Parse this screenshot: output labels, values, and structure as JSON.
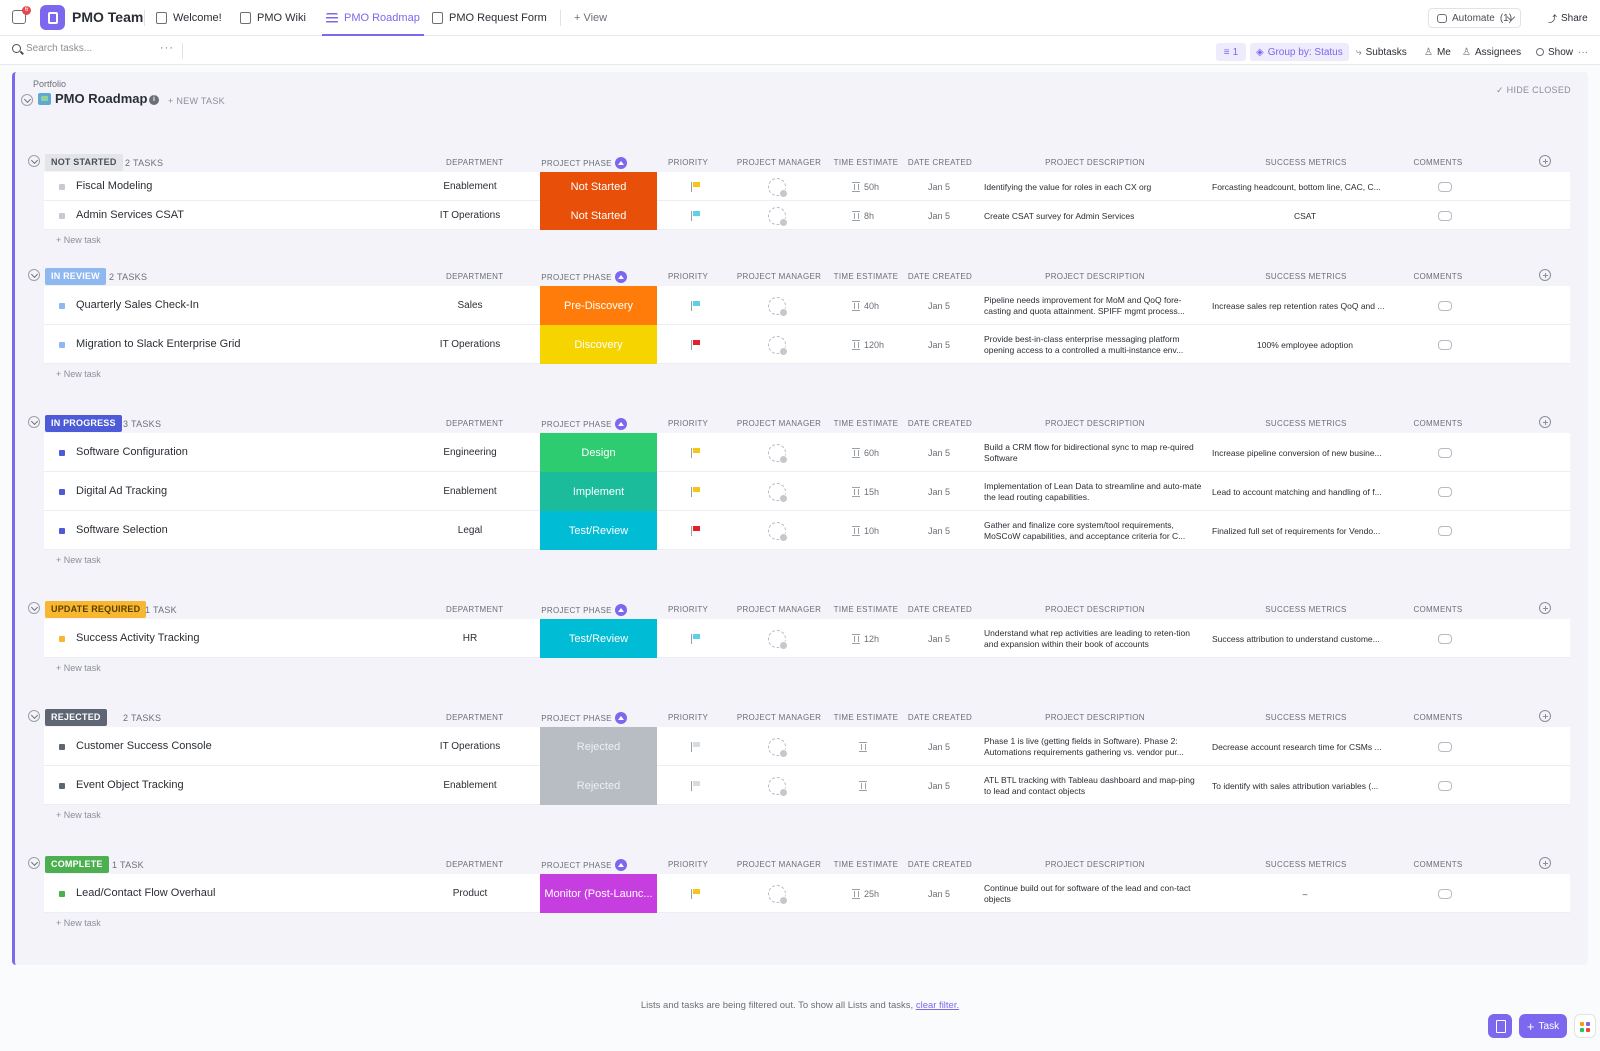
{
  "topbar": {
    "notification_count": "6",
    "space_name": "PMO Team",
    "tabs": [
      {
        "label": "Welcome!",
        "icon": "doc-icon",
        "active": false
      },
      {
        "label": "PMO Wiki",
        "icon": "doc-icon",
        "active": false
      },
      {
        "label": "PMO Roadmap",
        "icon": "list-icon",
        "active": true
      },
      {
        "label": "PMO Request Form",
        "icon": "form-icon",
        "active": false
      }
    ],
    "add_view_label": "+ View",
    "automate_label": "Automate",
    "automate_count": "(1)",
    "share_label": "Share"
  },
  "toolbar": {
    "search_placeholder": "Search tasks...",
    "more": "···",
    "filter_count": "1",
    "group_by": "Group by: Status",
    "subtasks": "Subtasks",
    "me": "Me",
    "assignees": "Assignees",
    "show": "Show",
    "more_right": "···"
  },
  "list": {
    "breadcrumb": "Portfolio",
    "title": "PMO Roadmap",
    "new_task": "+ NEW TASK",
    "hide_closed": "✓ HIDE CLOSED"
  },
  "columns": {
    "department": "DEPARTMENT",
    "phase": "PROJECT PHASE",
    "priority": "PRIORITY",
    "manager": "PROJECT MANAGER",
    "time": "TIME ESTIMATE",
    "date": "DATE CREATED",
    "desc": "PROJECT DESCRIPTION",
    "metrics": "SUCCESS METRICS",
    "comments": "COMMENTS"
  },
  "new_task_row_label": "+ New task",
  "colors": {
    "accent": "#7b68ee"
  },
  "groups": [
    {
      "status": "NOT STARTED",
      "count": "2 TASKS",
      "pill_bg": "#e3e5e9",
      "pill_fg": "#4b4f56",
      "dot": "#c7cbd1",
      "tasks": [
        {
          "name": "Fiscal Modeling",
          "dept": "Enablement",
          "phase": "Not Started",
          "phase_color": "#e8500a",
          "flag": "#f5c518",
          "time": "50h",
          "date": "Jan 5",
          "desc": "Identifying the value for roles in each CX org",
          "metric": "Forcasting headcount, bottom line, CAC, C...",
          "metric_center": false
        },
        {
          "name": "Admin Services CSAT",
          "dept": "IT Operations",
          "phase": "Not Started",
          "phase_color": "#e8500a",
          "flag": "#5fd0e6",
          "time": "8h",
          "date": "Jan 5",
          "desc": "Create CSAT survey for Admin Services",
          "metric": "CSAT",
          "metric_center": true
        }
      ]
    },
    {
      "status": "IN REVIEW",
      "count": "2 TASKS",
      "pill_bg": "#8fb7f0",
      "pill_fg": "#ffffff",
      "dot": "#8fb7f0",
      "tasks": [
        {
          "name": "Quarterly Sales Check-In",
          "dept": "Sales",
          "phase": "Pre-Discovery",
          "phase_color": "#ff7c0a",
          "flag": "#5fd0e6",
          "time": "40h",
          "date": "Jan 5",
          "desc": "Pipeline needs improvement for MoM and QoQ fore-casting and quota attainment.  SPIFF mgmt process...",
          "metric": "Increase sales rep retention rates QoQ and ...",
          "metric_center": false
        },
        {
          "name": "Migration to Slack Enterprise Grid",
          "dept": "IT Operations",
          "phase": "Discovery",
          "phase_color": "#f5d400",
          "flag": "#e5202a",
          "time": "120h",
          "date": "Jan 5",
          "desc": "Provide best-in-class enterprise messaging platform opening access to a controlled a multi-instance env...",
          "metric": "100% employee adoption",
          "metric_center": true
        }
      ]
    },
    {
      "status": "IN PROGRESS",
      "count": "3 TASKS",
      "pill_bg": "#4d5bd6",
      "pill_fg": "#ffffff",
      "dot": "#4d5bd6",
      "tasks": [
        {
          "name": "Software Configuration",
          "dept": "Engineering",
          "phase": "Design",
          "phase_color": "#2ecc71",
          "flag": "#f5c518",
          "time": "60h",
          "date": "Jan 5",
          "desc": "Build a CRM flow for bidirectional sync to map re-quired Software",
          "metric": "Increase pipeline conversion of new busine...",
          "metric_center": false
        },
        {
          "name": "Digital Ad Tracking",
          "dept": "Enablement",
          "phase": "Implement",
          "phase_color": "#1abc9c",
          "flag": "#f5c518",
          "time": "15h",
          "date": "Jan 5",
          "desc": "Implementation of Lean Data to streamline and auto-mate the lead routing capabilities.",
          "metric": "Lead to account matching and handling of f...",
          "metric_center": false
        },
        {
          "name": "Software Selection",
          "dept": "Legal",
          "phase": "Test/Review",
          "phase_color": "#00bcd4",
          "flag": "#e5202a",
          "time": "10h",
          "date": "Jan 5",
          "desc": "Gather and finalize core system/tool requirements, MoSCoW capabilities, and acceptance criteria for C...",
          "metric": "Finalized full set of requirements for Vendo...",
          "metric_center": false
        }
      ]
    },
    {
      "status": "UPDATE REQUIRED",
      "count": "1 TASK",
      "pill_bg": "#f7b731",
      "pill_fg": "#5a3e00",
      "dot": "#f7b731",
      "tasks": [
        {
          "name": "Success Activity Tracking",
          "dept": "HR",
          "phase": "Test/Review",
          "phase_color": "#00bcd4",
          "flag": "#5fd0e6",
          "time": "12h",
          "date": "Jan 5",
          "desc": " Understand what rep activities are leading to reten-tion and expansion within their book of accounts",
          "metric": "Success attribution to understand custome...",
          "metric_center": false
        }
      ]
    },
    {
      "status": "REJECTED",
      "count": "2 TASKS",
      "pill_bg": "#5f6673",
      "pill_fg": "#ffffff",
      "dot": "#5f6673",
      "tasks": [
        {
          "name": "Customer Success Console",
          "dept": "IT Operations",
          "phase": "Rejected",
          "phase_color": "#b8bcc3",
          "flag": "#d8dbe0",
          "time": "",
          "date": "Jan 5",
          "desc": "Phase 1 is live (getting fields in Software).  Phase 2: Automations requirements gathering vs. vendor pur...",
          "metric": "Decrease account research time for CSMs ...",
          "metric_center": false
        },
        {
          "name": "Event Object Tracking",
          "dept": "Enablement",
          "phase": "Rejected",
          "phase_color": "#b8bcc3",
          "flag": "#d8dbe0",
          "time": "",
          "date": "Jan 5",
          "desc": "ATL BTL tracking with Tableau dashboard and map-ping to lead and contact objects",
          "metric": "To identify with sales attribution variables (...",
          "metric_center": false
        }
      ]
    },
    {
      "status": "COMPLETE",
      "count": "1 TASK",
      "pill_bg": "#4caf50",
      "pill_fg": "#ffffff",
      "dot": "#4caf50",
      "tasks": [
        {
          "name": "Lead/Contact Flow Overhaul",
          "dept": "Product",
          "phase": "Monitor (Post-Launc...",
          "phase_color": "#c73ee0",
          "flag": "#f5c518",
          "time": "25h",
          "date": "Jan 5",
          "desc": "Continue build out for software of the lead and con-tact objects",
          "metric": "–",
          "metric_center": true
        }
      ]
    }
  ],
  "footer": {
    "note": "Lists and tasks are being filtered out. To show all Lists and tasks,",
    "link": "clear filter."
  },
  "fab": {
    "task_label": "Task"
  }
}
